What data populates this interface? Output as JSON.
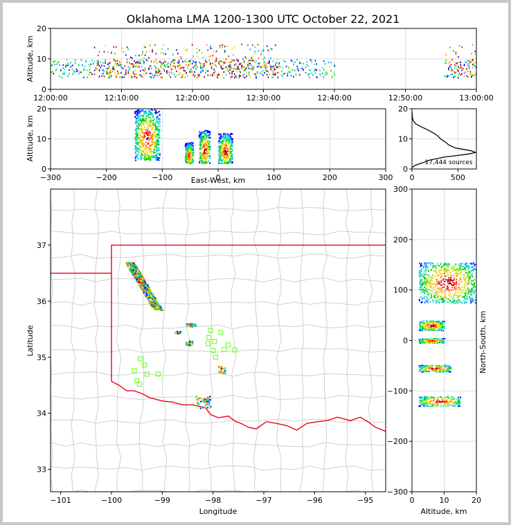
{
  "title": "Oklahoma LMA 1200-1300 UTC October 22, 2021",
  "colors": {
    "state_border": "#e8001c",
    "county_lines": "#cfcfcf",
    "station_marker": "#7cfc3c",
    "grid": "#dddddd",
    "density_scale": [
      "#0000ff",
      "#00a0ff",
      "#00e0c0",
      "#00c800",
      "#a0e000",
      "#ffd000",
      "#ff8000",
      "#ff0000",
      "#8b0000"
    ]
  },
  "chart_data": [
    {
      "id": "time_height",
      "type": "heatmap",
      "xlabel": "",
      "ylabel": "Altitude, km",
      "x_ticks": [
        "12:00:00",
        "12:10:00",
        "12:20:00",
        "12:30:00",
        "12:40:00",
        "12:50:00",
        "13:00:00"
      ],
      "xlim_minutes": [
        0,
        60
      ],
      "ylim": [
        0,
        20
      ],
      "y_ticks": [
        0,
        10,
        20
      ],
      "active_periods_minutes": [
        [
          0,
          40
        ],
        [
          55.5,
          60
        ]
      ]
    },
    {
      "id": "ew_height",
      "type": "heatmap",
      "xlabel": "East-West, km",
      "ylabel": "Altitude, km",
      "xlim": [
        -300,
        300
      ],
      "x_ticks": [
        -300,
        -200,
        -100,
        0,
        100,
        200,
        300
      ],
      "ylim": [
        0,
        20
      ],
      "y_ticks": [
        0,
        10,
        20
      ],
      "clusters": [
        {
          "x_range": [
            -150,
            -105
          ],
          "alt_range": [
            3,
            20
          ]
        },
        {
          "x_range": [
            -60,
            -45
          ],
          "alt_range": [
            2,
            9
          ]
        },
        {
          "x_range": [
            -35,
            -15
          ],
          "alt_range": [
            2,
            13
          ]
        },
        {
          "x_range": [
            0,
            25
          ],
          "alt_range": [
            2,
            12
          ]
        }
      ]
    },
    {
      "id": "altitude_histogram",
      "type": "line",
      "xlim": [
        0,
        700
      ],
      "x_ticks": [
        0,
        500
      ],
      "ylim": [
        0,
        20
      ],
      "y_ticks": [
        0,
        10,
        20
      ],
      "annotation": "17,444 sources",
      "series": [
        {
          "altitude_km": [
            0.5,
            1,
            1.5,
            2,
            3,
            4,
            4.5,
            5,
            5.5,
            6,
            6.5,
            7,
            8,
            9,
            10,
            11,
            12,
            13,
            14,
            15,
            16,
            17,
            18,
            19
          ],
          "count": [
            5,
            20,
            60,
            110,
            200,
            360,
            500,
            620,
            690,
            650,
            560,
            470,
            400,
            360,
            310,
            280,
            230,
            170,
            100,
            40,
            15,
            5,
            2,
            0
          ]
        }
      ]
    },
    {
      "id": "plan_view",
      "type": "heatmap",
      "xlabel": "Longitude",
      "ylabel": "Latitude",
      "xlim": [
        -101.2,
        -94.6
      ],
      "ylim": [
        32.6,
        38
      ],
      "x_ticks": [
        -101,
        -100,
        -99,
        -98,
        -97,
        -96,
        -95
      ],
      "y_ticks": [
        33,
        34,
        35,
        36,
        37
      ],
      "clusters": [
        {
          "lon_range": [
            -99.65,
            -98.9
          ],
          "lat_range": [
            35.85,
            36.7
          ]
        },
        {
          "lon_range": [
            -98.55,
            -98.35
          ],
          "lat_range": [
            35.55,
            35.62
          ]
        },
        {
          "lon_range": [
            -98.55,
            -98.4
          ],
          "lat_range": [
            35.22,
            35.3
          ]
        },
        {
          "lon_range": [
            -98.75,
            -98.65
          ],
          "lat_range": [
            35.43,
            35.47
          ]
        },
        {
          "lon_range": [
            -97.9,
            -97.75
          ],
          "lat_range": [
            34.72,
            34.85
          ]
        },
        {
          "lon_range": [
            -98.35,
            -98.05
          ],
          "lat_range": [
            34.1,
            34.32
          ]
        }
      ],
      "stations": [
        [
          -98.05,
          35.48
        ],
        [
          -97.85,
          35.44
        ],
        [
          -98.08,
          35.35
        ],
        [
          -97.97,
          35.28
        ],
        [
          -98.1,
          35.24
        ],
        [
          -97.7,
          35.22
        ],
        [
          -97.78,
          35.14
        ],
        [
          -97.57,
          35.13
        ],
        [
          -98.0,
          35.12
        ],
        [
          -97.95,
          35.0
        ],
        [
          -99.43,
          34.97
        ],
        [
          -99.35,
          34.86
        ],
        [
          -99.55,
          34.76
        ],
        [
          -99.3,
          34.7
        ],
        [
          -99.08,
          34.7
        ],
        [
          -99.5,
          34.58
        ],
        [
          -99.45,
          34.52
        ]
      ]
    },
    {
      "id": "ns_height",
      "type": "heatmap",
      "xlabel": "Altitude, km",
      "ylabel": "North-South, km",
      "xlim": [
        0,
        20
      ],
      "x_ticks": [
        0,
        10,
        20
      ],
      "ylim": [
        -300,
        300
      ],
      "y_ticks": [
        -300,
        -200,
        -100,
        0,
        100,
        200,
        300
      ],
      "clusters": [
        {
          "ns_range": [
            75,
            155
          ],
          "alt_range": [
            2,
            20
          ]
        },
        {
          "ns_range": [
            20,
            40
          ],
          "alt_range": [
            2,
            10
          ]
        },
        {
          "ns_range": [
            -5,
            5
          ],
          "alt_range": [
            2,
            10
          ]
        },
        {
          "ns_range": [
            -62,
            -48
          ],
          "alt_range": [
            2,
            12
          ]
        },
        {
          "ns_range": [
            -130,
            -110
          ],
          "alt_range": [
            2,
            15
          ]
        }
      ]
    }
  ]
}
